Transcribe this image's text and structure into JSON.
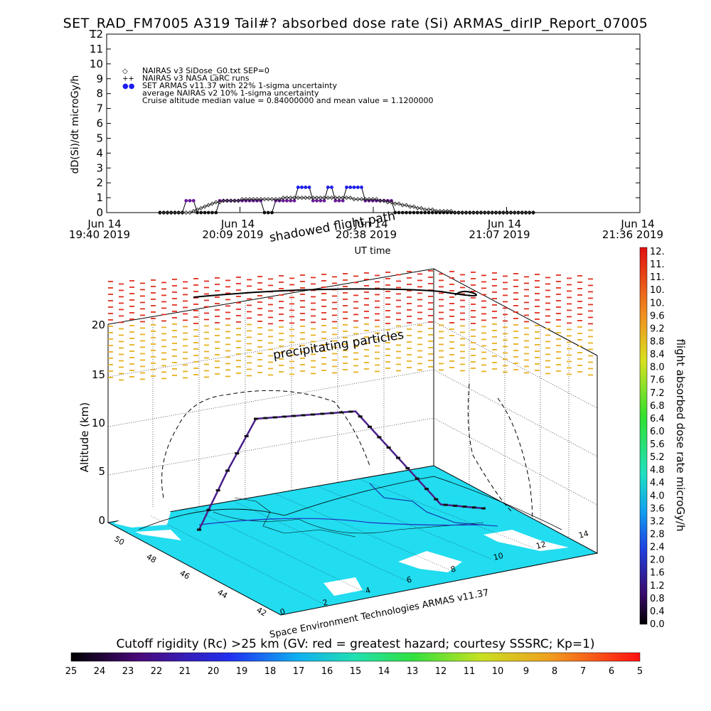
{
  "title": "SET_RAD_FM7005   A319 Tail#? absorbed dose rate (Si) ARMAS_dirIP_Report_07005",
  "chart_data": [
    {
      "type": "line",
      "ylabel": "dD(Si)/dt microGy/h",
      "xlabel": "UT time",
      "ylim": [
        0,
        12
      ],
      "yticks": [
        "0",
        "1",
        "2",
        "3",
        "4",
        "5",
        "6",
        "7",
        "8",
        "9",
        "10",
        "11",
        "12"
      ],
      "xticks": [
        {
          "l1": "Jun 14",
          "l2": "19:40 2019"
        },
        {
          "l1": "Jun 14",
          "l2": "20:09 2019"
        },
        {
          "l1": "Jun 14",
          "l2": "20:38 2019"
        },
        {
          "l1": "Jun 14",
          "l2": "21:07 2019"
        },
        {
          "l1": "Jun 14",
          "l2": "21:36 2019"
        }
      ],
      "legend": [
        {
          "symbol": "◇",
          "text": "NAIRAS v3 SiDose_G0.txt SEP=0"
        },
        {
          "symbol": "++",
          "text": "NAIRAS v3 NASA LaRC runs"
        },
        {
          "symbol": "●",
          "text": "SET ARMAS v11.37 with 22% 1-sigma uncertainty"
        },
        {
          "symbol": "",
          "text": "average NAIRAS v2 10% 1-sigma uncertainty"
        },
        {
          "symbol": "",
          "text": "Cruise altitude median value = 0.84000000 and mean value = 1.1200000"
        }
      ],
      "series": [
        {
          "name": "SET ARMAS v11.37",
          "color": "#5a1fa0",
          "values": [
            0,
            0,
            0,
            0,
            0,
            0,
            0,
            0.8,
            0.8,
            0.8,
            0,
            0,
            0,
            0,
            0,
            0,
            0.8,
            0.8,
            0.8,
            0.8,
            0.8,
            0.8,
            0.8,
            0.8,
            0.8,
            0.8,
            0.8,
            0.8,
            0,
            0,
            0,
            0.8,
            0.8,
            0.8,
            0.8,
            0.8,
            0.8,
            1.7,
            1.7,
            1.7,
            1.7,
            0.8,
            0.8,
            0.8,
            0.8,
            1.7,
            1.7,
            0.8,
            0.8,
            0.8,
            1.7,
            1.7,
            1.7,
            1.7,
            1.7,
            0.8,
            0.8,
            0.8,
            0.8,
            0.8,
            0.8,
            0.8,
            0.8,
            0,
            0,
            0,
            0,
            0,
            0,
            0,
            0,
            0,
            0,
            0,
            0,
            0,
            0,
            0,
            0,
            0,
            0,
            0,
            0,
            0,
            0,
            0,
            0,
            0,
            0,
            0,
            0,
            0,
            0,
            0,
            0,
            0,
            0,
            0,
            0,
            0,
            0
          ]
        },
        {
          "name": "NAIRAS v3 SiDose_G0.txt SEP=0",
          "color": "#000000",
          "values": [
            0,
            0,
            0,
            0,
            0,
            0,
            0,
            0,
            0,
            0.1,
            0.2,
            0.3,
            0.4,
            0.5,
            0.6,
            0.7,
            0.7,
            0.8,
            0.8,
            0.8,
            0.8,
            0.8,
            0.9,
            0.9,
            0.9,
            0.9,
            0.9,
            0.9,
            0.9,
            0.9,
            0.9,
            0.9,
            0.9,
            1.0,
            1.0,
            1.0,
            1.0,
            1.0,
            1.0,
            1.0,
            1.0,
            1.0,
            1.0,
            1.0,
            1.0,
            1.0,
            1.0,
            1.0,
            1.0,
            1.0,
            1.0,
            1.0,
            0.9,
            0.9,
            0.9,
            0.9,
            0.9,
            0.9,
            0.9,
            0.8,
            0.8,
            0.7,
            0.7,
            0.6,
            0.6,
            0.5,
            0.5,
            0.4,
            0.4,
            0.3,
            0.3,
            0.2,
            0.2,
            0.2,
            0.1,
            0.1,
            0.1,
            0.1,
            0.1,
            0,
            0,
            0,
            0,
            0,
            0,
            0,
            0,
            0,
            0,
            0,
            0,
            0,
            0,
            0,
            0,
            0,
            0,
            0,
            0,
            0,
            0
          ]
        }
      ],
      "x_start_fraction": 0.1,
      "x_end_fraction": 0.8
    },
    {
      "type": "scatter",
      "ylabel": "Altitude (km)",
      "zticks": [
        "0",
        "5",
        "10",
        "15",
        "20"
      ],
      "lat_ticks": [
        "50",
        "48",
        "46",
        "44",
        "42"
      ],
      "lon_ticks": [
        "0",
        "2",
        "4",
        "6",
        "8",
        "10",
        "12",
        "14"
      ],
      "annotations": [
        "shadowed flight path",
        "precipitating particles"
      ],
      "credit": "Space Environment Technologies ARMAS v11.37",
      "colors": {
        "sea": "#22dcf0",
        "land": "#ffffff",
        "precip_high": "#e03020",
        "precip_low": "#e8b020",
        "track": "#4a1f8a"
      }
    }
  ],
  "dose_colorbar": {
    "label": "flight absorbed dose rate microGy/h",
    "ticks": [
      "12.",
      "11.",
      "11.",
      "10.",
      "10.",
      "9.6",
      "9.2",
      "8.8",
      "8.4",
      "8.0",
      "7.6",
      "7.2",
      "6.8",
      "6.4",
      "6.0",
      "5.6",
      "5.2",
      "4.8",
      "4.4",
      "4.0",
      "3.6",
      "3.2",
      "2.8",
      "2.4",
      "2.0",
      "1.6",
      "1.2",
      "0.8",
      "0.4",
      "0.0"
    ]
  },
  "rigidity_bar": {
    "title": "Cutoff rigidity (Rc) >25 km (GV: red = greatest hazard; courtesy SSSRC; Kp=1)",
    "ticks": [
      "25",
      "24",
      "23",
      "22",
      "21",
      "20",
      "19",
      "18",
      "17",
      "16",
      "15",
      "14",
      "13",
      "12",
      "11",
      "10",
      "9",
      "8",
      "7",
      "6",
      "5"
    ]
  }
}
